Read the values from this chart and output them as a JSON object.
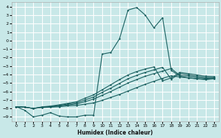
{
  "xlabel": "Humidex (Indice chaleur)",
  "bg_color": "#c8e8e8",
  "grid_color": "#ffffff",
  "line_color": "#1a6060",
  "xlim": [
    -0.5,
    23.5
  ],
  "ylim": [
    -9.5,
    4.5
  ],
  "xticks": [
    0,
    1,
    2,
    3,
    4,
    5,
    6,
    7,
    8,
    9,
    10,
    11,
    12,
    13,
    14,
    15,
    16,
    17,
    18,
    19,
    20,
    21,
    22,
    23
  ],
  "yticks": [
    4,
    3,
    2,
    1,
    0,
    -1,
    -2,
    -3,
    -4,
    -5,
    -6,
    -7,
    -8,
    -9
  ],
  "main_x": [
    0,
    1,
    2,
    3,
    4,
    5,
    6,
    7,
    8,
    9,
    10,
    11,
    12,
    13,
    14,
    15,
    16,
    17,
    18,
    19,
    20,
    21,
    22,
    23
  ],
  "main_y": [
    -7.8,
    -8.2,
    -9.0,
    -8.8,
    -8.5,
    -8.9,
    -9.0,
    -9.0,
    -8.8,
    -8.8,
    -1.6,
    -1.4,
    0.2,
    3.6,
    3.9,
    3.0,
    1.5,
    2.7,
    -3.5,
    -4.2,
    -4.4,
    -4.5,
    -4.6,
    -4.5
  ],
  "diag_lines": [
    [
      -7.8,
      -7.85,
      -8.0,
      -7.9,
      -7.85,
      -7.8,
      -7.7,
      -7.65,
      -7.5,
      -7.35,
      -7.05,
      -6.7,
      -6.35,
      -5.95,
      -5.55,
      -5.15,
      -4.8,
      -4.45,
      -4.15,
      -4.3,
      -4.4,
      -4.5,
      -4.55,
      -4.5
    ],
    [
      -7.8,
      -7.85,
      -8.0,
      -7.88,
      -7.82,
      -7.72,
      -7.6,
      -7.48,
      -7.2,
      -6.9,
      -6.45,
      -6.0,
      -5.5,
      -5.0,
      -4.6,
      -4.2,
      -3.9,
      -3.6,
      -3.3,
      -4.1,
      -4.2,
      -4.35,
      -4.45,
      -4.4
    ],
    [
      -7.8,
      -7.85,
      -8.0,
      -7.85,
      -7.78,
      -7.65,
      -7.5,
      -7.35,
      -7.0,
      -6.65,
      -6.1,
      -5.6,
      -5.05,
      -4.5,
      -4.1,
      -3.75,
      -3.45,
      -3.15,
      -4.55,
      -3.9,
      -4.05,
      -4.2,
      -4.35,
      -4.35
    ],
    [
      -7.8,
      -7.85,
      -8.0,
      -7.82,
      -7.72,
      -7.58,
      -7.4,
      -7.22,
      -6.8,
      -6.4,
      -5.8,
      -5.2,
      -4.6,
      -4.05,
      -3.65,
      -3.35,
      -3.1,
      -4.75,
      -4.4,
      -3.75,
      -3.9,
      -4.05,
      -4.2,
      -4.25
    ]
  ]
}
